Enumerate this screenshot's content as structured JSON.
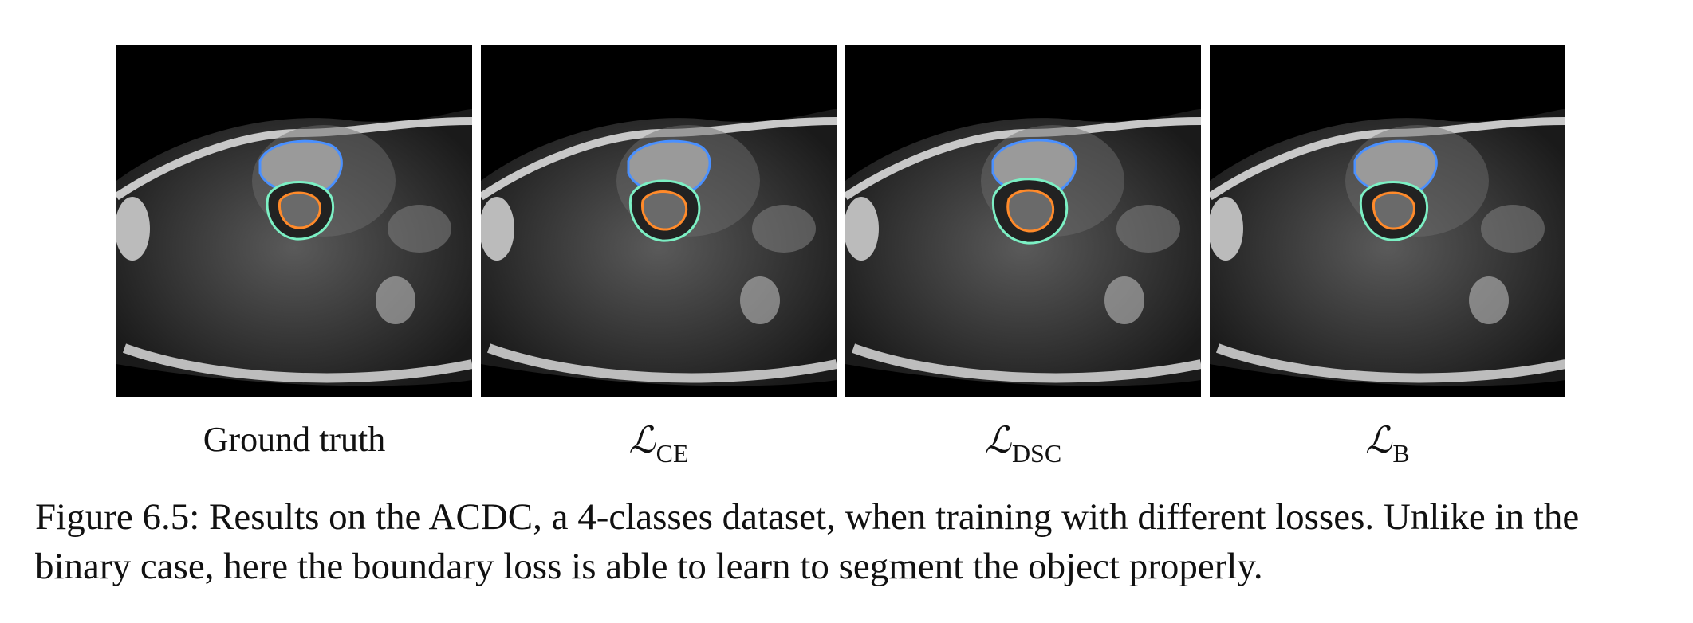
{
  "figure": {
    "panels": [
      {
        "id": "gt",
        "label": "Ground truth",
        "type": "text"
      },
      {
        "id": "ce",
        "label_symbol": "ℒ",
        "label_sub": "CE",
        "type": "math"
      },
      {
        "id": "dsc",
        "label_symbol": "ℒ",
        "label_sub": "DSC",
        "type": "math"
      },
      {
        "id": "b",
        "label_symbol": "ℒ",
        "label_sub": "B",
        "type": "math"
      }
    ],
    "contour_colors": {
      "right_ventricle": "#4a90ff",
      "myocardium": "#7cf0c4",
      "left_ventricle": "#ff8a2a"
    },
    "caption": "Figure 6.5: Results on the ACDC, a 4-classes dataset, when training with different losses. Unlike in the binary case, here the boundary loss is able to learn to segment the object properly."
  }
}
